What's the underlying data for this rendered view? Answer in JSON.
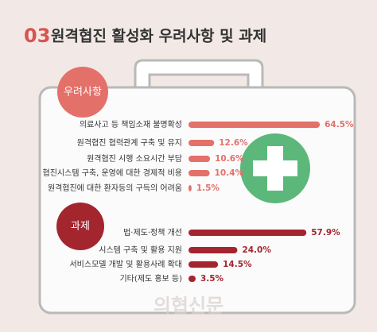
{
  "header": {
    "number": "03",
    "title": "원격협진 활성화 우려사항 및 과제",
    "watermark": "의협신문"
  },
  "chart_data": [
    {
      "type": "bar",
      "title": "우려사항",
      "color": "#e4706a",
      "categories": [
        "의료사고 등 책임소재 불명확성",
        "원격협진 협력관계 구축 및 유지",
        "원격협진 시행 소요시간 부담",
        "협진시스템 구축, 운영에 대한 경제적 비용",
        "원격협진에 대한 환자등의 구득의 어려움"
      ],
      "values": [
        64.5,
        12.6,
        10.6,
        10.4,
        1.5
      ],
      "value_labels": [
        "64.5%",
        "12.6%",
        "10.6%",
        "10.4%",
        "1.5%"
      ]
    },
    {
      "type": "bar",
      "title": "과제",
      "color": "#a3262f",
      "categories": [
        "법·제도·정책 개선",
        "시스템 구축 및 활용 지원",
        "서비스모델 개발 및 활용사례 확대",
        "기타(제도 홍보 등)"
      ],
      "values": [
        57.9,
        24.0,
        14.5,
        3.5
      ],
      "value_labels": [
        "57.9%",
        "24.0%",
        "14.5%",
        "3.5%"
      ]
    }
  ]
}
